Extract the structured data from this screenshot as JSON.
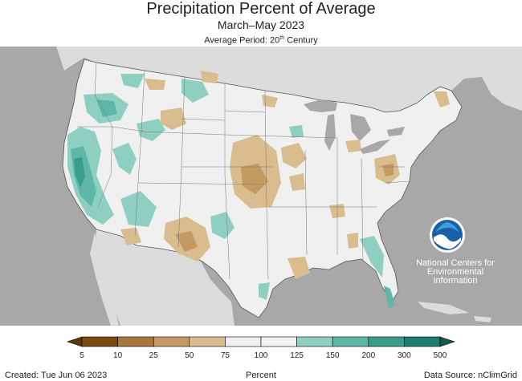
{
  "header": {
    "title": "Precipitation Percent of Average",
    "subtitle": "March–May 2023",
    "period_prefix": "Average Period: 20",
    "period_sup": "th",
    "period_suffix": " Century"
  },
  "logo": {
    "name": "NOAA",
    "org_line1": "National Centers for",
    "org_line2": "Environmental",
    "org_line3": "Information"
  },
  "legend": {
    "ticks": [
      "5",
      "10",
      "25",
      "50",
      "75",
      "100",
      "125",
      "150",
      "200",
      "300",
      "500"
    ],
    "colors": [
      "#7a4a14",
      "#a8773d",
      "#c49a63",
      "#d9bd8f",
      "#efefef",
      "#f2f2f2",
      "#8fcfc2",
      "#5fb7a7",
      "#3a9d8c",
      "#1e7f70"
    ],
    "low_arrow_color": "#5c360d",
    "high_arrow_color": "#13594e",
    "label": "Percent"
  },
  "footer": {
    "created": "Created: Tue Jun 06 2023",
    "source": "Data Source: nClimGrid"
  },
  "colors": {
    "background_land": "#a8a8a8",
    "canada": "#dcdcdc",
    "mexico": "#dcdcdc",
    "water": "#a8a8a8",
    "us_base": "#f0f0f0"
  }
}
